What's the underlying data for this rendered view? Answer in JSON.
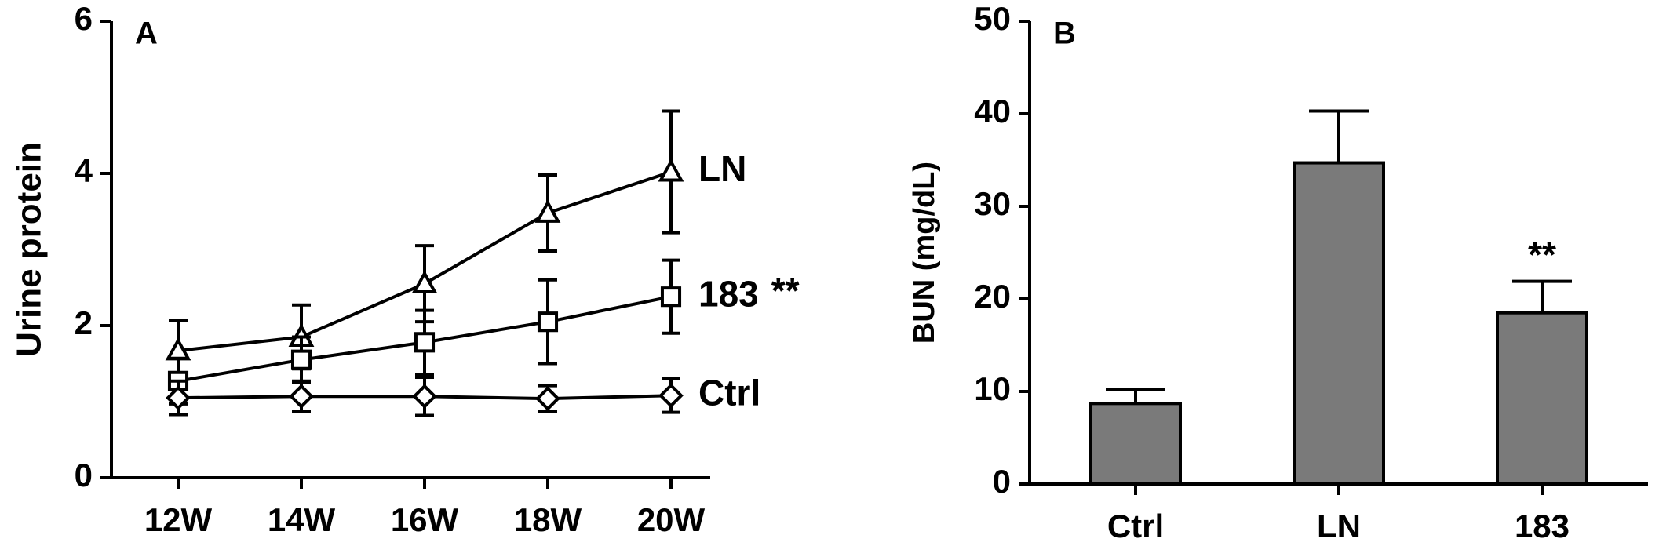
{
  "chart_data": [
    {
      "type": "line",
      "panel": "A",
      "ylabel": "Urine protein",
      "categories": [
        "12W",
        "14W",
        "16W",
        "18W",
        "20W"
      ],
      "ylim": [
        0,
        6
      ],
      "yticks": [
        0,
        2,
        4,
        6
      ],
      "series": [
        {
          "name": "LN",
          "marker": "triangle",
          "color": "#000000",
          "values": [
            1.67,
            1.85,
            2.55,
            3.48,
            4.02
          ],
          "errors": [
            0.4,
            0.42,
            0.5,
            0.5,
            0.8
          ]
        },
        {
          "name": "183",
          "note": "**",
          "marker": "square",
          "color": "#000000",
          "values": [
            1.27,
            1.55,
            1.78,
            2.05,
            2.38
          ],
          "errors": [
            0.3,
            0.3,
            0.42,
            0.55,
            0.48
          ]
        },
        {
          "name": "Ctrl",
          "marker": "diamond",
          "color": "#000000",
          "values": [
            1.05,
            1.07,
            1.07,
            1.04,
            1.08
          ],
          "errors": [
            0.22,
            0.2,
            0.25,
            0.17,
            0.22
          ]
        }
      ]
    },
    {
      "type": "bar",
      "panel": "B",
      "ylabel": "BUN (mg/dL)",
      "categories": [
        "Ctrl",
        "LN",
        "183"
      ],
      "values": [
        8.7,
        34.7,
        18.5
      ],
      "errors": [
        1.5,
        5.6,
        3.4
      ],
      "value_notes": [
        null,
        null,
        "**"
      ],
      "color": "#7a7a7a",
      "ylim": [
        0,
        50
      ],
      "yticks": [
        0,
        10,
        20,
        30,
        40,
        50
      ]
    }
  ]
}
